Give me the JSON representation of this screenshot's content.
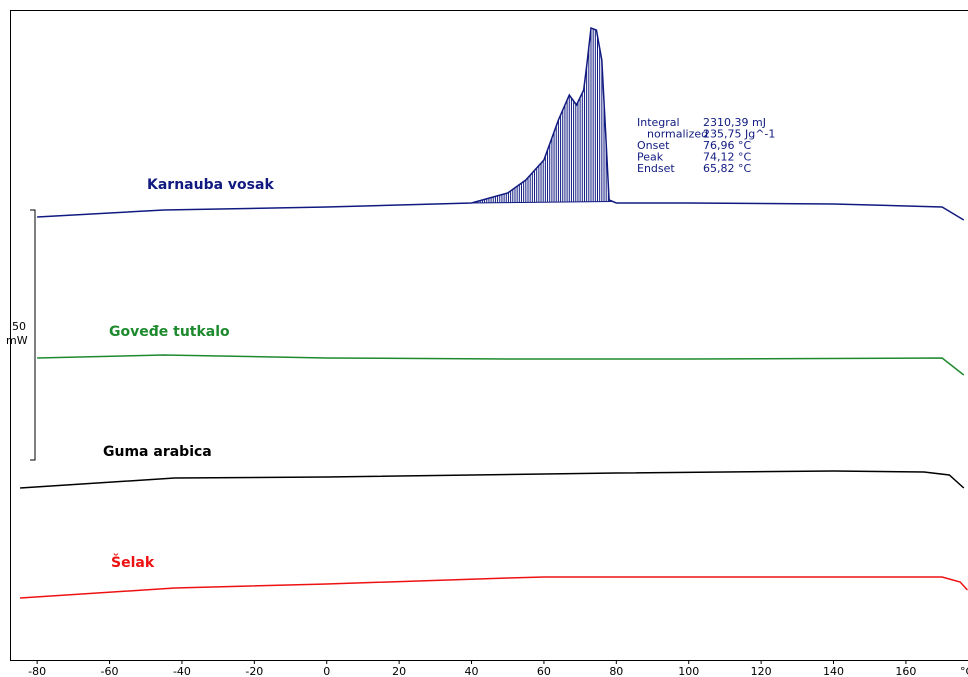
{
  "chart_data": {
    "type": "line",
    "xlim": [
      -87.5,
      176.6
    ],
    "ylim": [
      0,
      130
    ],
    "xticks": [
      -80,
      -60,
      -40,
      -20,
      0,
      20,
      40,
      60,
      80,
      100,
      120,
      140,
      160
    ],
    "x_unit": "°C",
    "scale_bar": {
      "value": 50,
      "unit": "mW"
    },
    "series": [
      {
        "name": "Karnauba vosak",
        "color": "#101a80",
        "x": [
          -80,
          -45,
          0,
          30,
          40,
          50,
          55,
          60,
          64,
          67,
          69,
          71,
          72,
          73,
          74.5,
          76,
          77,
          78,
          80,
          100,
          140,
          170,
          176
        ],
        "values": [
          88.6,
          90,
          90.6,
          91.2,
          91.4,
          93.4,
          96,
          100,
          108,
          113,
          111,
          114,
          120,
          126.4,
          126,
          120,
          106,
          92,
          91.4,
          91.4,
          91.2,
          90.6,
          88
        ]
      },
      {
        "name": "Goveđe tutkalo",
        "color": "#1e8a2e",
        "x": [
          -80,
          -45,
          0,
          50,
          100,
          170,
          176
        ],
        "values": [
          60.4,
          61,
          60.4,
          60.2,
          60.2,
          60.4,
          57
        ]
      },
      {
        "name": "Guma arabica",
        "color": "#000000",
        "x": [
          -84.7,
          -42,
          0,
          80,
          140,
          165,
          172,
          176
        ],
        "values": [
          34.4,
          36.4,
          36.6,
          37.4,
          37.8,
          37.6,
          37,
          34.4
        ]
      },
      {
        "name": "Šelak",
        "color": "#ee1111",
        "x": [
          -84.7,
          -42,
          0,
          50,
          60,
          100,
          170,
          175,
          177
        ],
        "values": [
          12.4,
          14.4,
          15.2,
          16.4,
          16.6,
          16.6,
          16.6,
          15.6,
          14
        ]
      }
    ],
    "annotation": [
      [
        "Integral",
        "2310,39 mJ"
      ],
      [
        "normalized",
        "235,75 Jg^-1"
      ],
      [
        "Onset",
        "76,96 °C"
      ],
      [
        "Peak",
        "74,12 °C"
      ],
      [
        "Endset",
        "65,82 °C"
      ]
    ]
  }
}
